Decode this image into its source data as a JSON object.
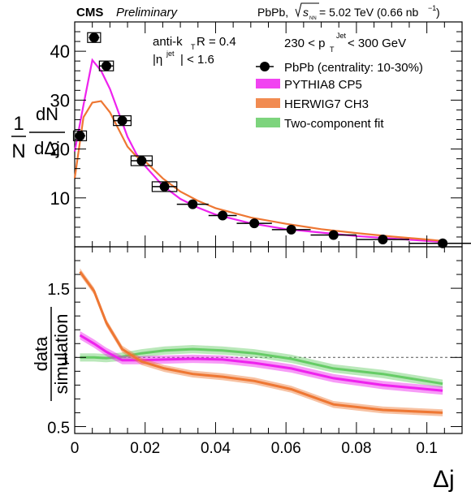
{
  "header": {
    "experiment": "CMS",
    "status": "Preliminary",
    "system_prefix": "PbPb, ",
    "system_energy": " = 5.02 TeV (0.66 nb",
    "system_suffix": ")"
  },
  "annotations": {
    "algo": "anti-k",
    "algo_sub": "T",
    "radius": " R = 0.4",
    "eta_pre": "|η",
    "eta_sup": "jet",
    "eta_post": "| < 1.6",
    "pt_pre": "230 < p",
    "pt_sub": "T",
    "pt_sup": "Jet",
    "pt_post": " < 300 GeV"
  },
  "legend": [
    {
      "key": "data",
      "label": "PbPb (centrality: 10-30%)",
      "color": "#000000"
    },
    {
      "key": "pythia",
      "label": "PYTHIA8 CP5",
      "color": "#ee22ee"
    },
    {
      "key": "herwig",
      "label": "HERWIG7 CH3",
      "color": "#ee7733"
    },
    {
      "key": "fit",
      "label": "Two-component fit",
      "color": "#66cc66"
    }
  ],
  "chart_data": [
    {
      "type": "scatter",
      "panel": "top",
      "ylabel_num": "1",
      "ylabel_den": "N",
      "ylabel_dnum": "dN",
      "ylabel_dden": "dΔj",
      "xlim": [
        0,
        0.11
      ],
      "ylim": [
        0,
        46
      ],
      "yticks": [
        10,
        20,
        30,
        40
      ],
      "xticks": [
        0,
        0.02,
        0.04,
        0.06,
        0.08,
        0.1
      ],
      "series": [
        {
          "name": "PbPb (centrality: 10-30%)",
          "kind": "data",
          "x": [
            0.0015,
            0.0055,
            0.009,
            0.0135,
            0.019,
            0.0255,
            0.0335,
            0.042,
            0.051,
            0.0615,
            0.0735,
            0.0875,
            0.1045
          ],
          "xerr": [
            0.0015,
            0.0015,
            0.002,
            0.0025,
            0.003,
            0.0035,
            0.0045,
            0.004,
            0.005,
            0.0055,
            0.0065,
            0.0075,
            0.0095
          ],
          "y": [
            22.7,
            42.8,
            37.0,
            25.8,
            17.6,
            12.3,
            8.7,
            6.4,
            4.8,
            3.5,
            2.4,
            1.5,
            0.7
          ]
        },
        {
          "name": "PYTHIA8 CP5",
          "kind": "line",
          "x": [
            0.0,
            0.0025,
            0.005,
            0.0075,
            0.01,
            0.0125,
            0.015,
            0.0175,
            0.02,
            0.025,
            0.03,
            0.035,
            0.04,
            0.05,
            0.06,
            0.07,
            0.08,
            0.09,
            0.1,
            0.1045
          ],
          "y": [
            19.5,
            29.0,
            38.2,
            36.0,
            32.3,
            27.4,
            22.5,
            19.0,
            16.5,
            12.5,
            9.8,
            8.0,
            6.6,
            4.8,
            3.6,
            2.9,
            2.2,
            1.7,
            1.2,
            1.0
          ]
        },
        {
          "name": "HERWIG7 CH3",
          "kind": "line",
          "x": [
            0.0,
            0.0025,
            0.005,
            0.0075,
            0.01,
            0.0125,
            0.015,
            0.0175,
            0.02,
            0.025,
            0.03,
            0.035,
            0.04,
            0.05,
            0.06,
            0.07,
            0.08,
            0.09,
            0.1,
            0.1045
          ],
          "y": [
            14.0,
            26.5,
            29.5,
            29.8,
            27.5,
            24.0,
            20.5,
            18.5,
            17.5,
            14.0,
            11.3,
            9.4,
            7.9,
            6.0,
            4.7,
            3.6,
            2.8,
            2.1,
            1.5,
            1.2
          ]
        }
      ]
    },
    {
      "type": "line",
      "panel": "bottom",
      "ylabel_num": "data",
      "ylabel_den": "simulation",
      "xlabel": "Δj",
      "xlim": [
        0,
        0.11
      ],
      "ylim": [
        0.45,
        1.8
      ],
      "yticks": [
        0.5,
        1,
        1.5
      ],
      "yticklabels": [
        "0.5",
        "1",
        "1.5"
      ],
      "xticks": [
        0,
        0.02,
        0.04,
        0.06,
        0.08,
        0.1
      ],
      "xticklabels": [
        "0",
        "0.02",
        "0.04",
        "0.06",
        "0.08",
        "0.1"
      ],
      "reference_line": 1,
      "series": [
        {
          "name": "Two-component fit",
          "x": [
            0.0015,
            0.0055,
            0.009,
            0.0135,
            0.019,
            0.0255,
            0.0335,
            0.042,
            0.051,
            0.0615,
            0.0735,
            0.0875,
            0.1045
          ],
          "y": [
            1.0,
            1.0,
            0.995,
            1.005,
            1.03,
            1.05,
            1.06,
            1.05,
            1.03,
            0.99,
            0.92,
            0.88,
            0.81
          ],
          "band": 0.03
        },
        {
          "name": "PYTHIA8 CP5",
          "x": [
            0.0015,
            0.0055,
            0.009,
            0.0135,
            0.019,
            0.0255,
            0.0335,
            0.042,
            0.051,
            0.0615,
            0.0735,
            0.0875,
            0.1045
          ],
          "y": [
            1.16,
            1.1,
            1.04,
            0.98,
            0.98,
            0.985,
            0.99,
            0.985,
            0.96,
            0.92,
            0.85,
            0.8,
            0.76
          ],
          "band": 0.03
        },
        {
          "name": "HERWIG7 CH3",
          "x": [
            0.0015,
            0.0055,
            0.009,
            0.0135,
            0.019,
            0.0255,
            0.0335,
            0.042,
            0.051,
            0.0615,
            0.0735,
            0.0875,
            0.1045
          ],
          "y": [
            1.62,
            1.48,
            1.25,
            1.06,
            0.97,
            0.92,
            0.88,
            0.86,
            0.83,
            0.77,
            0.66,
            0.62,
            0.6
          ],
          "band": 0.025
        }
      ]
    }
  ]
}
